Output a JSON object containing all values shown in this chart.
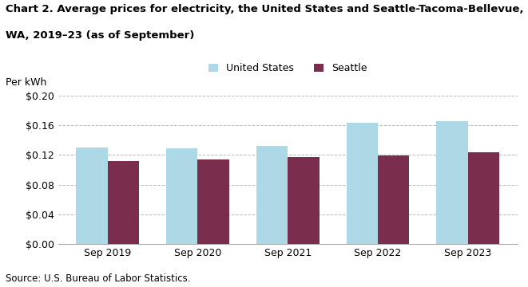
{
  "title_line1": "Chart 2. Average prices for electricity, the United States and Seattle-Tacoma-Bellevue,",
  "title_line2": "WA, 2019–23 (as of September)",
  "ylabel": "Per kWh",
  "source": "Source: U.S. Bureau of Labor Statistics.",
  "categories": [
    "Sep 2019",
    "Sep 2020",
    "Sep 2021",
    "Sep 2022",
    "Sep 2023"
  ],
  "us_values": [
    0.13,
    0.129,
    0.132,
    0.163,
    0.165
  ],
  "seattle_values": [
    0.112,
    0.114,
    0.117,
    0.119,
    0.124
  ],
  "us_color": "#add8e6",
  "seattle_color": "#7B2D4E",
  "legend_us": "United States",
  "legend_seattle": "Seattle",
  "ylim": [
    0,
    0.205
  ],
  "yticks": [
    0.0,
    0.04,
    0.08,
    0.12,
    0.16,
    0.2
  ],
  "bar_width": 0.35,
  "background_color": "#ffffff",
  "grid_color": "#bbbbbb"
}
